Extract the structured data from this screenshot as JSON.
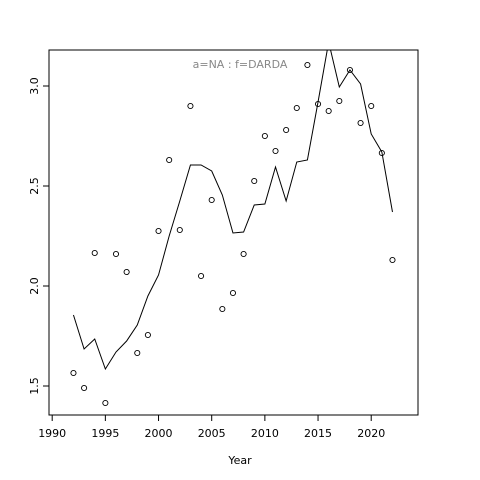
{
  "chart_data": {
    "type": "line",
    "annotation": "a=NA  :  f=DARDA",
    "x_label": "Year",
    "x": [
      1992,
      1993,
      1994,
      1995,
      1996,
      1997,
      1998,
      1999,
      2000,
      2001,
      2002,
      2003,
      2004,
      2005,
      2006,
      2007,
      2008,
      2009,
      2010,
      2011,
      2012,
      2013,
      2014,
      2015,
      2016,
      2017,
      2018,
      2019,
      2020,
      2021,
      2022
    ],
    "series": [
      {
        "mode": "points",
        "color": "#000000",
        "values": [
          1.565,
          1.49,
          2.165,
          1.415,
          2.16,
          2.07,
          1.665,
          1.755,
          2.275,
          2.63,
          2.28,
          2.9,
          2.05,
          2.43,
          1.885,
          1.965,
          2.16,
          2.525,
          2.75,
          2.675,
          2.78,
          2.89,
          3.105,
          2.91,
          2.875,
          2.925,
          3.08,
          2.815,
          2.9,
          2.665,
          2.13
        ]
      },
      {
        "mode": "line",
        "color": "#000000",
        "values": [
          1.855,
          1.685,
          1.735,
          1.585,
          1.67,
          1.725,
          1.805,
          1.95,
          2.055,
          2.25,
          2.425,
          2.605,
          2.605,
          2.575,
          2.455,
          2.265,
          2.27,
          2.405,
          2.41,
          2.595,
          2.425,
          2.62,
          2.63,
          2.92,
          3.22,
          2.995,
          3.08,
          3.01,
          2.76,
          2.67,
          2.37
        ]
      }
    ],
    "xlim": [
      1989.7,
      2024.4
    ],
    "ylim": [
      1.355,
      3.18
    ],
    "xticks": [
      1990,
      1995,
      2000,
      2005,
      2010,
      2015,
      2020
    ],
    "yticks": [
      {
        "value": 1.5,
        "label": "1.5"
      },
      {
        "value": 2.0,
        "label": "2.0"
      },
      {
        "value": 2.5,
        "label": "2.5"
      },
      {
        "value": 3.0,
        "label": "3.0"
      }
    ]
  }
}
